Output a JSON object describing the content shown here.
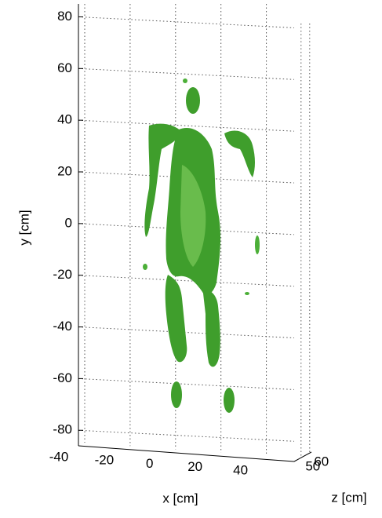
{
  "chart_data": {
    "type": "isosurface",
    "xlabel": "x [cm]",
    "ylabel": "y [cm]",
    "zlabel": "z [cm]",
    "xlim": [
      -40,
      55
    ],
    "xticks": [
      -40,
      -20,
      0,
      20,
      40
    ],
    "ylim": [
      -86,
      85
    ],
    "yticks": [
      -80,
      -60,
      -40,
      -20,
      0,
      20,
      40,
      60,
      80
    ],
    "zlim": [
      42,
      62
    ],
    "zticks": [
      50,
      60
    ],
    "grid": true,
    "color": "#3f9e2c"
  }
}
